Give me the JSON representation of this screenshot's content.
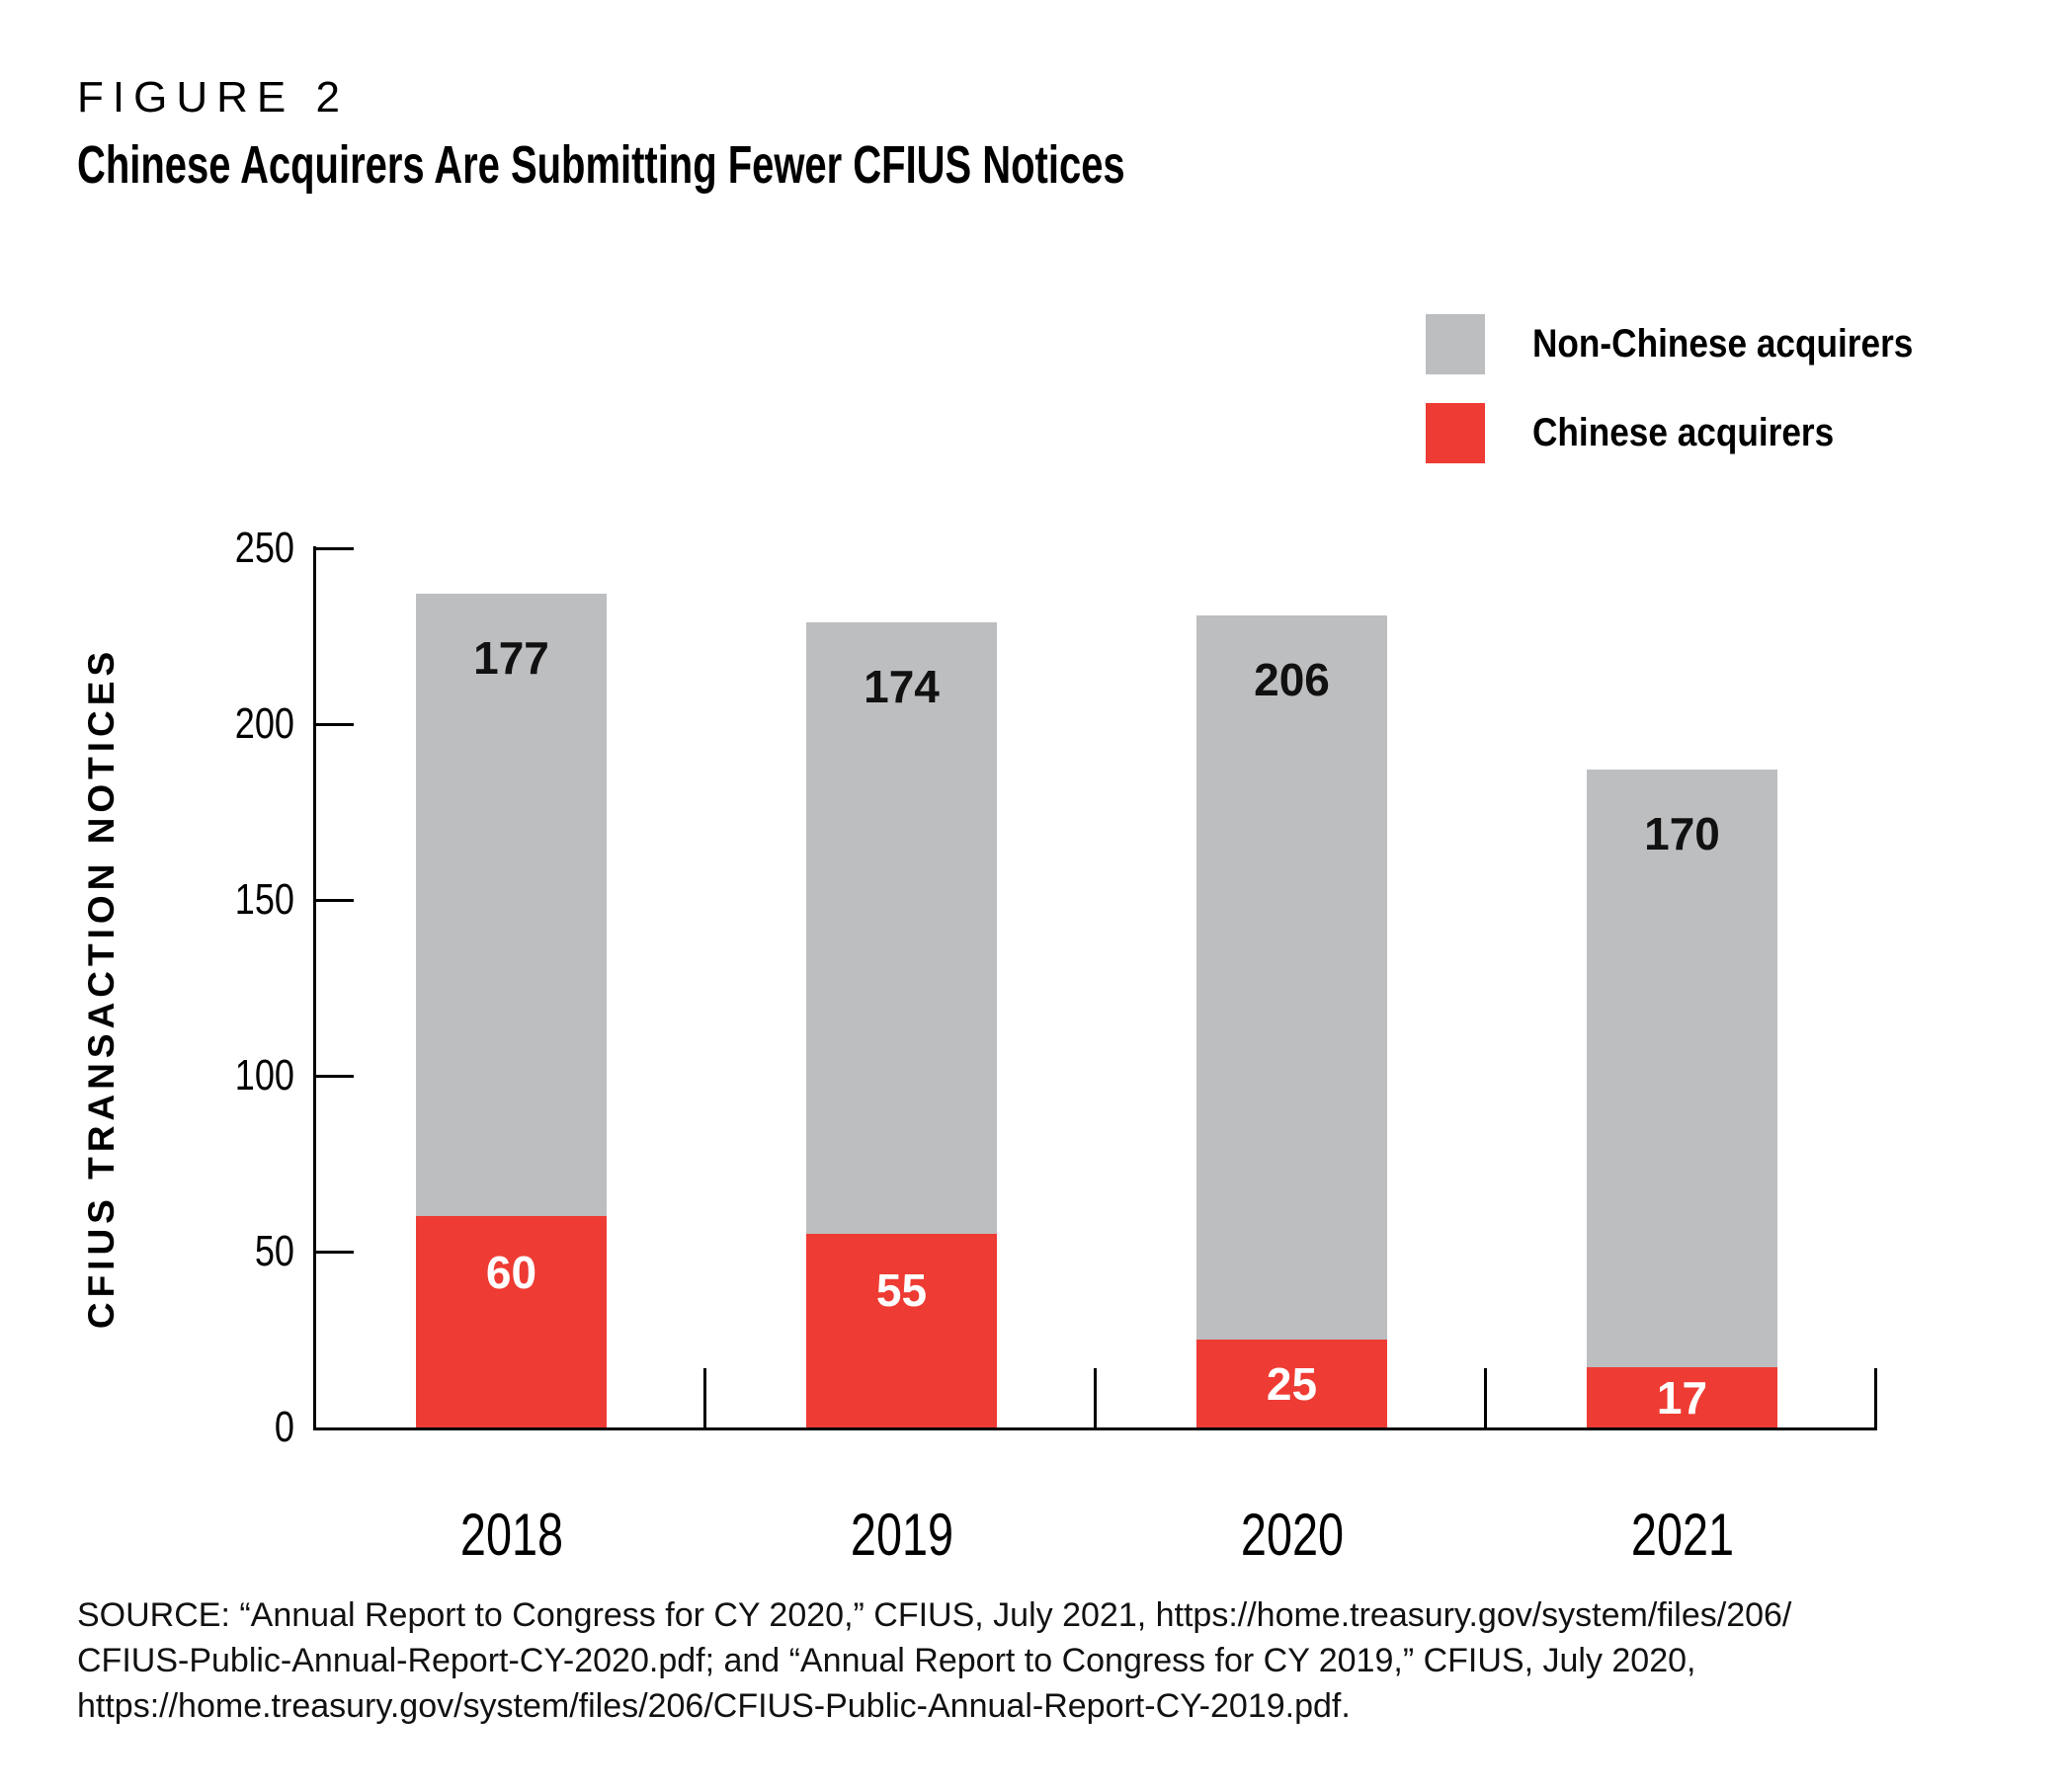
{
  "header": {
    "figure_label": "FIGURE 2",
    "title": "Chinese Acquirers Are Submitting Fewer CFIUS Notices"
  },
  "legend": {
    "items": [
      {
        "label": "Non-Chinese acquirers",
        "color": "#BDBEC0"
      },
      {
        "label": "Chinese acquirers",
        "color": "#EE3B33"
      }
    ]
  },
  "chart_data": {
    "type": "bar",
    "stacked": true,
    "title": "Chinese Acquirers Are Submitting Fewer CFIUS Notices",
    "categories": [
      "2018",
      "2019",
      "2020",
      "2021"
    ],
    "series": [
      {
        "name": "Chinese acquirers",
        "color": "#EE3B33",
        "values": [
          60,
          55,
          25,
          17
        ],
        "value_label_color": "#FFFFFF"
      },
      {
        "name": "Non-Chinese acquirers",
        "color": "#BDBEC0",
        "values": [
          177,
          174,
          206,
          170
        ],
        "value_label_color": "#111111"
      }
    ],
    "xlabel": "",
    "ylabel": "CFIUS TRANSACTION NOTICES",
    "ylim": [
      0,
      250
    ],
    "yticks": [
      0,
      50,
      100,
      150,
      200,
      250
    ],
    "grid": false,
    "legend_position": "top-right"
  },
  "footer": {
    "source": "SOURCE: “Annual Report to Congress for CY 2020,” CFIUS, July 2021, https://home.treasury.gov/system/files/206/\nCFIUS-Public-Annual-Report-CY-2020.pdf; and “Annual Report to Congress for CY 2019,” CFIUS, July 2020,\nhttps://home.treasury.gov/system/files/206/CFIUS-Public-Annual-Report-CY-2019.pdf."
  }
}
